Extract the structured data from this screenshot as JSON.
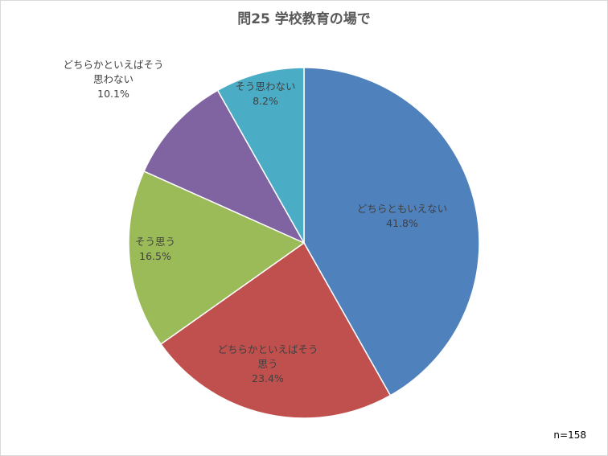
{
  "chart_data": {
    "type": "pie",
    "title": "問25  学校教育の場で",
    "note": "n=158",
    "start_angle_deg": 0,
    "direction": "clockwise",
    "slices": [
      {
        "label_lines": [
          "どちらともいえない"
        ],
        "value": 41.8,
        "pct_label": "41.8%",
        "color": "#4f81bd"
      },
      {
        "label_lines": [
          "どちらかといえばそう",
          "思う"
        ],
        "value": 23.4,
        "pct_label": "23.4%",
        "color": "#c0504d"
      },
      {
        "label_lines": [
          "そう思う"
        ],
        "value": 16.5,
        "pct_label": "16.5%",
        "color": "#9bbb59"
      },
      {
        "label_lines": [
          "どちらかといえばそう",
          "思わない"
        ],
        "value": 10.1,
        "pct_label": "10.1%",
        "color": "#8064a2"
      },
      {
        "label_lines": [
          "そう思わない"
        ],
        "value": 8.2,
        "pct_label": "8.2%",
        "color": "#4bacc6"
      }
    ]
  }
}
